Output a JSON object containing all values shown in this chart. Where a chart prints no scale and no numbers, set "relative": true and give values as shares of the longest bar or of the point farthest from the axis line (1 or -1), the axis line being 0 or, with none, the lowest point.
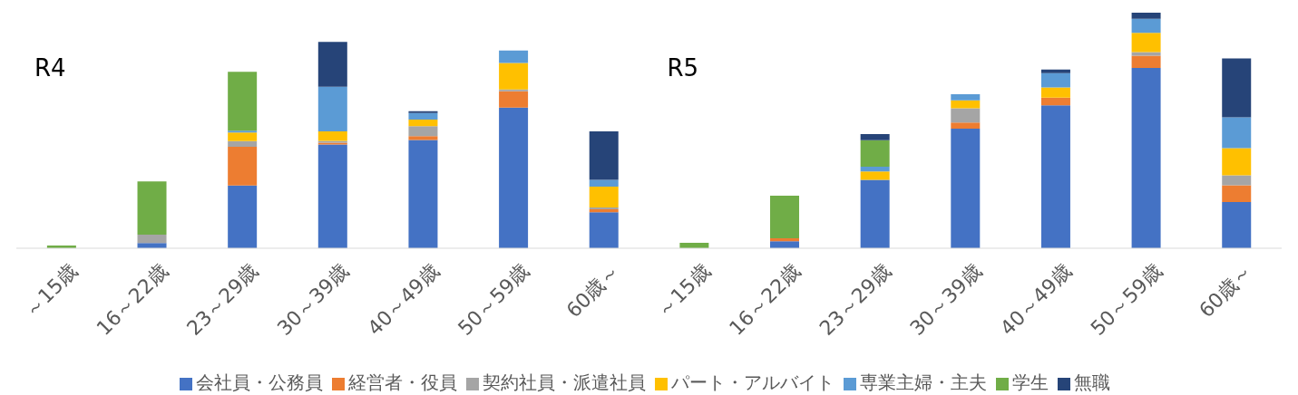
{
  "chart_data": {
    "type": "bar",
    "stacked": true,
    "relative": true,
    "legend": "bottom",
    "annotations": [
      "R4",
      "R5"
    ],
    "categories": [
      "～15歳",
      "16～22歳",
      "23～29歳",
      "30～39歳",
      "40～49歳",
      "50～59歳",
      "60歳～",
      "～15歳",
      "16～22歳",
      "23～29歳",
      "30～39歳",
      "40～49歳",
      "50～59歳",
      "60歳～"
    ],
    "series": [
      {
        "name": "会社員・公務員",
        "color": "#4472c4",
        "values": [
          0,
          0.022,
          0.266,
          0.44,
          0.46,
          0.597,
          0.153,
          0,
          0.03,
          0.29,
          0.508,
          0.607,
          0.765,
          0.196
        ]
      },
      {
        "name": "経営者・役員",
        "color": "#ed7d31",
        "values": [
          0,
          0,
          0.165,
          0.008,
          0.016,
          0.069,
          0.012,
          0,
          0.012,
          0,
          0.026,
          0.032,
          0.052,
          0.071
        ]
      },
      {
        "name": "契約社員・派遣社員",
        "color": "#a5a5a5",
        "values": [
          0,
          0.036,
          0.024,
          0.008,
          0.042,
          0.008,
          0.008,
          0,
          0,
          0,
          0.06,
          0,
          0.016,
          0.043
        ]
      },
      {
        "name": "パート・アルバイト",
        "color": "#ffc000",
        "values": [
          0,
          0,
          0.036,
          0.04,
          0.028,
          0.113,
          0.089,
          0,
          0,
          0.036,
          0.034,
          0.044,
          0.081,
          0.115
        ]
      },
      {
        "name": "専業主婦・主夫",
        "color": "#5b9bd5",
        "values": [
          0,
          0,
          0.008,
          0.19,
          0.028,
          0.052,
          0.028,
          0,
          0,
          0.02,
          0.026,
          0.06,
          0.06,
          0.131
        ]
      },
      {
        "name": "学生",
        "color": "#70ad47",
        "values": [
          0.012,
          0.226,
          0.25,
          0,
          0,
          0,
          0,
          0.023,
          0.181,
          0.113,
          0,
          0,
          0,
          0
        ]
      },
      {
        "name": "無職",
        "color": "#264478",
        "values": [
          0,
          0,
          0,
          0.19,
          0.008,
          0,
          0.206,
          0,
          0,
          0.026,
          0,
          0.016,
          0.026,
          0.25
        ]
      }
    ]
  }
}
